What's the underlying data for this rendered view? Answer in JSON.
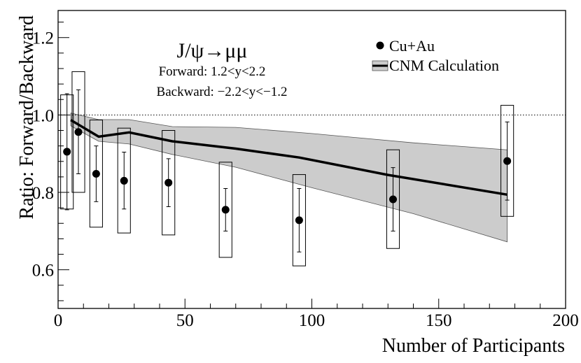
{
  "chart_data": {
    "type": "scatter",
    "title": "J/ψ→μμ",
    "annotations": [
      "Forward: 1.2<y<2.2",
      "Backward: −2.2<y<−1.2"
    ],
    "xlabel": "Number of Participants",
    "ylabel": "Ratio: Forward/Backward",
    "xlim": [
      0,
      200
    ],
    "ylim": [
      0.5,
      1.27
    ],
    "x_ticks": [
      0,
      50,
      100,
      150,
      200
    ],
    "x_tick_labels": [
      "0",
      "50",
      "100",
      "150",
      "200"
    ],
    "y_ticks": [
      0.6,
      0.8,
      1.0,
      1.2
    ],
    "y_tick_labels": [
      "0.6",
      "0.8",
      "1.0",
      "1.2"
    ],
    "reference_line_y": 1.0,
    "legend": {
      "position": "top-right",
      "entries": [
        {
          "label": "Cu+Au",
          "style": "marker"
        },
        {
          "label": "CNM Calculation",
          "style": "line-band"
        }
      ]
    },
    "series": [
      {
        "name": "Cu+Au",
        "points": [
          {
            "x": 3.5,
            "y": 0.905,
            "stat_lo": 0.755,
            "stat_hi": 1.055,
            "sys_lo": 0.757,
            "sys_hi": 1.052,
            "sys_halfwidth": 2.5
          },
          {
            "x": 8,
            "y": 0.956,
            "stat_lo": 0.848,
            "stat_hi": 1.065,
            "sys_lo": 0.8,
            "sys_hi": 1.112,
            "sys_halfwidth": 2.5
          },
          {
            "x": 15,
            "y": 0.848,
            "stat_lo": 0.776,
            "stat_hi": 0.92,
            "sys_lo": 0.71,
            "sys_hi": 0.987,
            "sys_halfwidth": 2.5
          },
          {
            "x": 26,
            "y": 0.83,
            "stat_lo": 0.757,
            "stat_hi": 0.904,
            "sys_lo": 0.695,
            "sys_hi": 0.966,
            "sys_halfwidth": 2.5
          },
          {
            "x": 43.5,
            "y": 0.825,
            "stat_lo": 0.763,
            "stat_hi": 0.887,
            "sys_lo": 0.69,
            "sys_hi": 0.96,
            "sys_halfwidth": 2.5
          },
          {
            "x": 66,
            "y": 0.755,
            "stat_lo": 0.7,
            "stat_hi": 0.81,
            "sys_lo": 0.632,
            "sys_hi": 0.878,
            "sys_halfwidth": 2.5
          },
          {
            "x": 95,
            "y": 0.728,
            "stat_lo": 0.646,
            "stat_hi": 0.81,
            "sys_lo": 0.61,
            "sys_hi": 0.846,
            "sys_halfwidth": 2.5
          },
          {
            "x": 132,
            "y": 0.782,
            "stat_lo": 0.7,
            "stat_hi": 0.864,
            "sys_lo": 0.655,
            "sys_hi": 0.91,
            "sys_halfwidth": 2.5
          },
          {
            "x": 177,
            "y": 0.881,
            "stat_lo": 0.78,
            "stat_hi": 0.982,
            "sys_lo": 0.738,
            "sys_hi": 1.025,
            "sys_halfwidth": 2.5
          }
        ]
      },
      {
        "name": "CNM Calculation",
        "line": [
          {
            "x": 5,
            "y": 0.987
          },
          {
            "x": 16,
            "y": 0.944
          },
          {
            "x": 28,
            "y": 0.955
          },
          {
            "x": 45,
            "y": 0.932
          },
          {
            "x": 70,
            "y": 0.913
          },
          {
            "x": 95,
            "y": 0.89
          },
          {
            "x": 130,
            "y": 0.845
          },
          {
            "x": 177,
            "y": 0.794
          }
        ],
        "band_upper": [
          {
            "x": 5,
            "y": 1.005
          },
          {
            "x": 16,
            "y": 0.988
          },
          {
            "x": 28,
            "y": 0.988
          },
          {
            "x": 45,
            "y": 0.97
          },
          {
            "x": 70,
            "y": 0.968
          },
          {
            "x": 100,
            "y": 0.952
          },
          {
            "x": 140,
            "y": 0.928
          },
          {
            "x": 177,
            "y": 0.91
          }
        ],
        "band_lower": [
          {
            "x": 177,
            "y": 0.672
          },
          {
            "x": 140,
            "y": 0.745
          },
          {
            "x": 100,
            "y": 0.812
          },
          {
            "x": 70,
            "y": 0.865
          },
          {
            "x": 45,
            "y": 0.898
          },
          {
            "x": 28,
            "y": 0.925
          },
          {
            "x": 16,
            "y": 0.932
          },
          {
            "x": 5,
            "y": 0.972
          }
        ]
      }
    ],
    "style": {
      "band_fill": "#cccccc",
      "band_stroke": "#555555",
      "line_color": "#000000",
      "marker_color": "#000000",
      "axis_color": "#000000"
    }
  }
}
